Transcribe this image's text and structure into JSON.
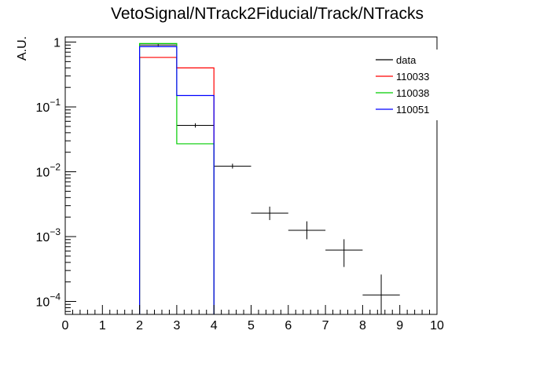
{
  "chart_data": {
    "type": "histogram",
    "title": "VetoSignal/NTrack2Fiducial/Track/NTracks",
    "xlabel": "",
    "ylabel": "A.U.",
    "xlim": [
      0,
      10
    ],
    "ylim": [
      6.31e-05,
      1.2
    ],
    "yscale": "log",
    "grid": false,
    "legend_position": "top-right",
    "x_tick_labels": [
      "0",
      "1",
      "2",
      "3",
      "4",
      "5",
      "6",
      "7",
      "8",
      "9",
      "10"
    ],
    "y_tick_labels": [
      {
        "value": 1,
        "base": "1",
        "exp": ""
      },
      {
        "value": 0.1,
        "base": "10",
        "exp": "−1"
      },
      {
        "value": 0.01,
        "base": "10",
        "exp": "−2"
      },
      {
        "value": 0.001,
        "base": "10",
        "exp": "−3"
      },
      {
        "value": 0.0001,
        "base": "10",
        "exp": "−4"
      }
    ],
    "series": [
      {
        "name": "data",
        "style": "points",
        "color": "#000000",
        "points": [
          {
            "x": 2.5,
            "y": 0.9,
            "err_low": 0.87,
            "err_high": 0.93
          },
          {
            "x": 3.5,
            "y": 0.052,
            "err_low": 0.048,
            "err_high": 0.056
          },
          {
            "x": 4.5,
            "y": 0.0122,
            "err_low": 0.0112,
            "err_high": 0.0133
          },
          {
            "x": 5.5,
            "y": 0.0023,
            "err_low": 0.0018,
            "err_high": 0.0029
          },
          {
            "x": 6.5,
            "y": 0.00125,
            "err_low": 0.00091,
            "err_high": 0.00172
          },
          {
            "x": 7.5,
            "y": 0.00062,
            "err_low": 0.00034,
            "err_high": 0.00091
          },
          {
            "x": 8.5,
            "y": 0.000126,
            "err_low": 6.31e-05,
            "err_high": 0.00026
          }
        ]
      },
      {
        "name": "110033",
        "style": "step",
        "color": "#ff0000",
        "bins": [
          {
            "x0": 2,
            "x1": 3,
            "y": 0.58
          },
          {
            "x0": 3,
            "x1": 4,
            "y": 0.4
          }
        ]
      },
      {
        "name": "110038",
        "style": "step",
        "color": "#00cc00",
        "bins": [
          {
            "x0": 2,
            "x1": 3,
            "y": 0.95
          },
          {
            "x0": 3,
            "x1": 4,
            "y": 0.027
          }
        ]
      },
      {
        "name": "110051",
        "style": "step",
        "color": "#0000ff",
        "bins": [
          {
            "x0": 2,
            "x1": 3,
            "y": 0.85
          },
          {
            "x0": 3,
            "x1": 4,
            "y": 0.15
          }
        ]
      }
    ]
  }
}
